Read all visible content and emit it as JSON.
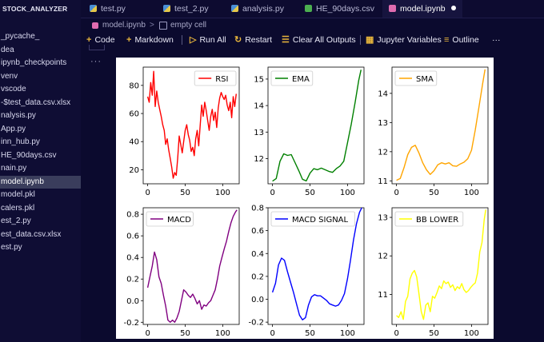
{
  "sidebar": {
    "header": "STOCK_ANALYZER",
    "items": [
      {
        "label": "_pycache_"
      },
      {
        "label": "dea"
      },
      {
        "label": "ipynb_checkpoints"
      },
      {
        "label": "venv"
      },
      {
        "label": "vscode"
      },
      {
        "label": "-$test_data.csv.xlsx"
      },
      {
        "label": "nalysis.py"
      },
      {
        "label": "App.py"
      },
      {
        "label": "inn_hub.py"
      },
      {
        "label": "HE_90days.csv"
      },
      {
        "label": "nain.py"
      },
      {
        "label": "model.ipynb",
        "selected": true
      },
      {
        "label": "model.pkl"
      },
      {
        "label": "calers.pkl"
      },
      {
        "label": "est_2.py"
      },
      {
        "label": "est_data.csv.xlsx"
      },
      {
        "label": "est.py"
      }
    ]
  },
  "tabs": [
    {
      "label": "test.py",
      "icon": "python-icon"
    },
    {
      "label": "test_2.py",
      "icon": "python-icon"
    },
    {
      "label": "analysis.py",
      "icon": "python-icon"
    },
    {
      "label": "HE_90days.csv",
      "icon": "csv-icon"
    },
    {
      "label": "model.ipynb",
      "icon": "notebook-icon",
      "active": true,
      "unsaved": true
    }
  ],
  "breadcrumb": {
    "file": "model.ipynb",
    "separator": ">",
    "cell": "empty cell"
  },
  "toolbar": {
    "code": "Code",
    "markdown": "Markdown",
    "run_all": "Run All",
    "restart": "Restart",
    "clear_all": "Clear All Outputs",
    "variables": "Jupyter Variables",
    "outline": "Outline",
    "more": "···"
  },
  "cell": {
    "more": "···"
  },
  "chart_data": [
    {
      "type": "line",
      "legend": "RSI",
      "color": "#ff0000",
      "legend_placement": "top-right",
      "ylim": [
        10,
        93
      ],
      "yticks": [
        20,
        40,
        60,
        80
      ],
      "xlim": [
        -6,
        122
      ],
      "xticks": [
        0,
        50,
        100
      ],
      "x": [
        0,
        2,
        4,
        6,
        8,
        10,
        12,
        14,
        16,
        18,
        20,
        22,
        24,
        26,
        28,
        30,
        32,
        34,
        36,
        38,
        40,
        42,
        44,
        46,
        48,
        50,
        52,
        54,
        56,
        58,
        60,
        62,
        64,
        66,
        68,
        70,
        72,
        74,
        76,
        78,
        80,
        82,
        84,
        86,
        88,
        90,
        92,
        94,
        96,
        98,
        100,
        102,
        104,
        106,
        108,
        110,
        112,
        114,
        116,
        118
      ],
      "values": [
        72,
        68,
        82,
        73,
        90,
        65,
        76,
        68,
        63,
        58,
        52,
        48,
        38,
        42,
        34,
        28,
        22,
        14,
        18,
        16,
        28,
        44,
        38,
        32,
        40,
        48,
        52,
        45,
        41,
        33,
        36,
        30,
        42,
        48,
        37,
        52,
        66,
        58,
        68,
        62,
        55,
        48,
        58,
        63,
        55,
        61,
        50,
        64,
        71,
        75,
        72,
        70,
        73,
        66,
        62,
        68,
        57,
        72,
        65,
        74
      ]
    },
    {
      "type": "line",
      "legend": "EMA",
      "color": "#008000",
      "legend_placement": "top-left",
      "ylim": [
        11.05,
        15.45
      ],
      "yticks": [
        11,
        12,
        13,
        14,
        15
      ],
      "xlim": [
        -6,
        122
      ],
      "xticks": [
        0,
        50,
        100
      ],
      "x": [
        0,
        5,
        10,
        15,
        20,
        25,
        30,
        35,
        40,
        45,
        50,
        55,
        60,
        65,
        70,
        75,
        80,
        85,
        90,
        95,
        100,
        105,
        110,
        115,
        118
      ],
      "values": [
        11.15,
        11.25,
        11.9,
        12.18,
        12.12,
        12.15,
        11.85,
        11.55,
        11.22,
        11.16,
        11.45,
        11.62,
        11.58,
        11.64,
        11.58,
        11.52,
        11.48,
        11.62,
        11.72,
        11.9,
        12.6,
        13.3,
        14.1,
        14.95,
        15.35
      ]
    },
    {
      "type": "line",
      "legend": "SMA",
      "color": "#ffa500",
      "legend_placement": "top-left",
      "ylim": [
        10.9,
        14.9
      ],
      "yticks": [
        11,
        12,
        13,
        14,
        15
      ],
      "xlim": [
        -6,
        122
      ],
      "xticks": [
        0,
        50,
        100
      ],
      "x": [
        0,
        5,
        10,
        15,
        20,
        25,
        30,
        35,
        40,
        45,
        50,
        55,
        60,
        65,
        70,
        75,
        80,
        85,
        90,
        95,
        100,
        105,
        110,
        115,
        118
      ],
      "values": [
        11.02,
        11.08,
        11.45,
        11.9,
        12.15,
        12.22,
        11.95,
        11.62,
        11.38,
        11.22,
        11.35,
        11.55,
        11.62,
        11.58,
        11.62,
        11.52,
        11.5,
        11.58,
        11.64,
        11.76,
        12.05,
        12.75,
        13.55,
        14.35,
        14.82
      ]
    },
    {
      "type": "line",
      "legend": "MACD",
      "color": "#800080",
      "legend_placement": "top-left",
      "ylim": [
        -0.22,
        0.86
      ],
      "yticks": [
        -0.2,
        0.0,
        0.2,
        0.4,
        0.6,
        0.8
      ],
      "xlim": [
        -6,
        122
      ],
      "xticks": [
        0,
        50,
        100
      ],
      "x": [
        0,
        3,
        6,
        9,
        12,
        15,
        18,
        21,
        24,
        27,
        30,
        33,
        36,
        39,
        42,
        45,
        48,
        51,
        54,
        57,
        60,
        63,
        66,
        69,
        72,
        75,
        78,
        81,
        84,
        87,
        90,
        93,
        96,
        99,
        102,
        105,
        108,
        111,
        114,
        117,
        119
      ],
      "values": [
        0.12,
        0.22,
        0.32,
        0.45,
        0.38,
        0.22,
        0.16,
        0.05,
        -0.05,
        -0.18,
        -0.2,
        -0.18,
        -0.2,
        -0.16,
        -0.1,
        0.0,
        0.1,
        0.08,
        0.05,
        0.03,
        0.06,
        0.02,
        -0.03,
        0.0,
        -0.08,
        -0.04,
        -0.05,
        -0.02,
        0.0,
        0.05,
        0.1,
        0.2,
        0.32,
        0.4,
        0.48,
        0.55,
        0.64,
        0.72,
        0.78,
        0.82,
        0.84
      ]
    },
    {
      "type": "line",
      "legend": "MACD SIGNAL",
      "color": "#0000ff",
      "legend_placement": "top-left",
      "ylim": [
        -0.22,
        0.8
      ],
      "yticks": [
        -0.2,
        0.0,
        0.2,
        0.4,
        0.6,
        0.8
      ],
      "xlim": [
        -6,
        122
      ],
      "xticks": [
        0,
        50,
        100
      ],
      "x": [
        0,
        4,
        8,
        12,
        16,
        20,
        24,
        28,
        32,
        36,
        40,
        44,
        48,
        52,
        56,
        60,
        64,
        68,
        72,
        76,
        80,
        84,
        88,
        92,
        96,
        100,
        104,
        108,
        112,
        116,
        119
      ],
      "values": [
        0.06,
        0.14,
        0.3,
        0.36,
        0.34,
        0.24,
        0.15,
        0.06,
        -0.04,
        -0.14,
        -0.18,
        -0.16,
        -0.05,
        0.02,
        0.04,
        0.03,
        0.03,
        0.01,
        -0.01,
        -0.04,
        -0.05,
        -0.06,
        -0.05,
        -0.01,
        0.05,
        0.18,
        0.34,
        0.52,
        0.66,
        0.76,
        0.8
      ]
    },
    {
      "type": "line",
      "legend": "BB LOWER",
      "color": "#ffff00",
      "legend_placement": "top-left",
      "ylim": [
        10.22,
        13.25
      ],
      "yticks": [
        11,
        12,
        13
      ],
      "xlim": [
        -6,
        122
      ],
      "xticks": [
        0,
        50,
        100
      ],
      "x": [
        0,
        3,
        6,
        9,
        12,
        15,
        18,
        21,
        24,
        27,
        30,
        33,
        36,
        39,
        42,
        45,
        48,
        51,
        54,
        57,
        60,
        63,
        66,
        69,
        72,
        75,
        78,
        81,
        84,
        87,
        90,
        93,
        96,
        99,
        102,
        105,
        108,
        111,
        114,
        117,
        119
      ],
      "values": [
        10.45,
        10.4,
        10.55,
        10.35,
        10.82,
        10.95,
        11.4,
        11.55,
        11.62,
        11.45,
        11.0,
        10.55,
        10.35,
        10.72,
        10.78,
        10.55,
        10.95,
        10.9,
        11.05,
        11.22,
        11.15,
        11.35,
        11.28,
        11.32,
        11.18,
        11.25,
        11.1,
        11.2,
        11.15,
        11.28,
        11.12,
        11.05,
        11.1,
        11.18,
        11.25,
        11.3,
        11.55,
        12.1,
        12.35,
        12.95,
        13.2
      ]
    }
  ]
}
